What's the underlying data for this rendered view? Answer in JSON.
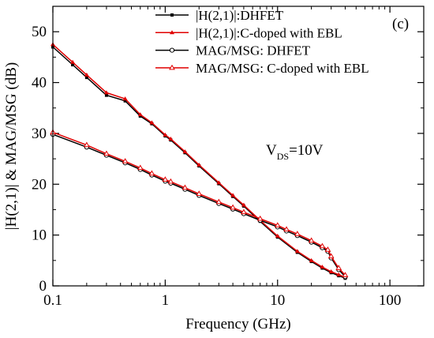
{
  "chart_data": {
    "type": "line",
    "xscale": "log",
    "xlim": [
      0.1,
      200
    ],
    "ylim": [
      0,
      55
    ],
    "xlabel": "Frequency (GHz)",
    "ylabel": "|H(2,1)| & MAG/MSG (dB)",
    "xticks": [
      0.1,
      1,
      10,
      100
    ],
    "xtick_labels": [
      "0.1",
      "1",
      "10",
      "100"
    ],
    "yticks": [
      0,
      10,
      20,
      30,
      40,
      50
    ],
    "ytick_labels": [
      "0",
      "10",
      "20",
      "30",
      "40",
      "50"
    ],
    "panel_label": "(c)",
    "annotation": {
      "main": "V",
      "sub": "DS",
      "tail": "=10V"
    },
    "legend_position": "top-right",
    "series": [
      {
        "name": "|H(2,1)|:DHFET",
        "color": "#000000",
        "marker": "filled-square",
        "x": [
          0.1,
          0.15,
          0.2,
          0.3,
          0.44,
          0.6,
          0.76,
          1.0,
          1.12,
          1.5,
          2.0,
          3.0,
          4.0,
          5.0,
          7.0,
          10.0,
          15.0,
          20.0,
          25.0,
          30.0,
          35.0,
          40.0
        ],
        "y": [
          47.0,
          43.5,
          41.0,
          37.5,
          36.4,
          33.4,
          31.9,
          29.5,
          28.7,
          26.2,
          23.6,
          20.1,
          17.6,
          15.7,
          12.7,
          9.6,
          6.6,
          4.8,
          3.5,
          2.6,
          2.0,
          1.5
        ]
      },
      {
        "name": "|H(2,1)|:C-doped with  EBL",
        "color": "#e00000",
        "marker": "filled-triangle",
        "x": [
          0.1,
          0.15,
          0.2,
          0.3,
          0.44,
          0.6,
          0.76,
          1.0,
          1.12,
          1.5,
          2.0,
          3.0,
          4.0,
          5.0,
          7.0,
          10.0,
          15.0,
          20.0,
          25.0,
          30.0,
          35.0,
          40.0
        ],
        "y": [
          47.5,
          44.0,
          41.5,
          38.0,
          36.8,
          33.7,
          32.1,
          29.7,
          28.9,
          26.4,
          23.8,
          20.3,
          17.8,
          15.9,
          12.9,
          9.8,
          6.8,
          5.0,
          3.7,
          2.8,
          2.2,
          1.7
        ]
      },
      {
        "name": "MAG/MSG: DHFET",
        "color": "#000000",
        "marker": "open-circle",
        "x": [
          0.1,
          0.2,
          0.3,
          0.44,
          0.6,
          0.76,
          1.0,
          1.12,
          1.5,
          2.0,
          3.0,
          4.0,
          5.0,
          7.0,
          10.0,
          12.0,
          15.0,
          20.0,
          25.0,
          28.0,
          30.0,
          35.0,
          40.0
        ],
        "y": [
          29.8,
          27.3,
          25.7,
          24.2,
          22.9,
          21.8,
          20.6,
          20.2,
          19.0,
          17.8,
          16.2,
          15.1,
          14.2,
          12.9,
          11.6,
          10.8,
          9.9,
          8.6,
          7.5,
          6.8,
          5.5,
          3.2,
          1.8
        ]
      },
      {
        "name": "MAG/MSG: C-doped with  EBL",
        "color": "#e00000",
        "marker": "open-triangle",
        "x": [
          0.1,
          0.2,
          0.3,
          0.44,
          0.6,
          0.76,
          1.0,
          1.12,
          1.5,
          2.0,
          3.0,
          4.0,
          5.0,
          7.0,
          10.0,
          12.0,
          15.0,
          20.0,
          25.0,
          28.0,
          30.0,
          35.0,
          40.0
        ],
        "y": [
          30.2,
          27.7,
          26.0,
          24.5,
          23.2,
          22.1,
          20.9,
          20.5,
          19.3,
          18.1,
          16.5,
          15.4,
          14.5,
          13.2,
          11.9,
          11.1,
          10.2,
          8.9,
          7.8,
          7.1,
          5.8,
          3.5,
          2.1
        ]
      }
    ]
  }
}
